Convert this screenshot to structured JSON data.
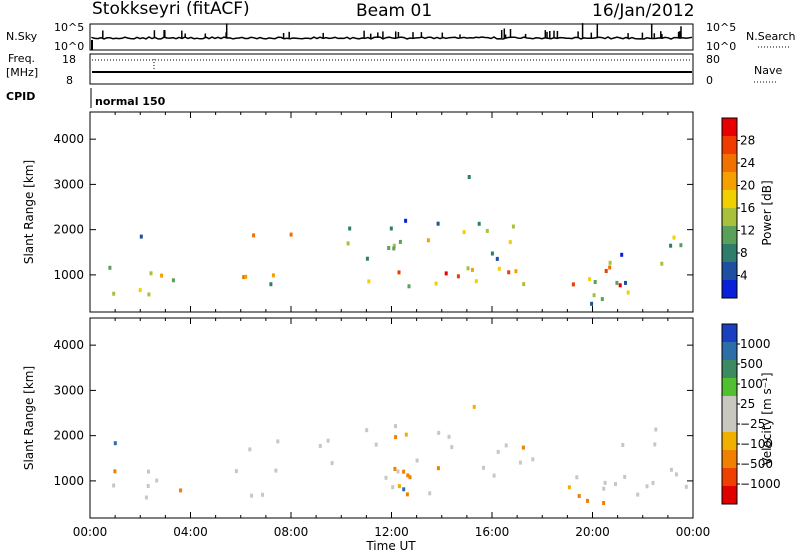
{
  "header": {
    "station": "Stokkseyri (fitACF)",
    "beam": "Beam 01",
    "date": "16/Jan/2012"
  },
  "strip": {
    "nsky_label": "N.Sky",
    "nsky_ticks": [
      "10^5",
      "10^0"
    ],
    "nsearch_label": "N.Search",
    "nsearch_ticks": [
      "10^5",
      "10^0"
    ],
    "freq_label_1": "Freq.",
    "freq_label_2": "[MHz]",
    "freq_ticks": [
      "18",
      "8"
    ],
    "nave_label": "Nave",
    "nave_ticks": [
      "80",
      "0"
    ],
    "cpid_label": "CPID",
    "cpid_value": "normal 150"
  },
  "chart_data": [
    {
      "type": "heatmap",
      "name": "power",
      "ylabel": "Slant Range [km]",
      "xlabel": "Time UT",
      "x_ticks": [
        "00:00",
        "04:00",
        "08:00",
        "12:00",
        "16:00",
        "20:00",
        "00:00"
      ],
      "y_ticks": [
        1000,
        2000,
        3000,
        4000
      ],
      "ylim": [
        180,
        4600
      ],
      "xlim_hours": [
        0,
        24
      ],
      "colorbar_label": "Power [dB]",
      "colorbar_ticks": [
        "4",
        "8",
        "12",
        "16",
        "20",
        "24",
        "28"
      ],
      "colorbar_colors": [
        "#0a1fd8",
        "#1e4fa0",
        "#2e7d6a",
        "#5aa05a",
        "#a8c03c",
        "#f0d000",
        "#f5a000",
        "#f07000",
        "#f03c00",
        "#e80000"
      ]
    },
    {
      "type": "heatmap",
      "name": "velocity",
      "ylabel": "Slant Range [km]",
      "xlabel": "Time UT",
      "x_ticks": [
        "00:00",
        "04:00",
        "08:00",
        "12:00",
        "16:00",
        "20:00",
        "00:00"
      ],
      "y_ticks": [
        1000,
        2000,
        3000,
        4000
      ],
      "ylim": [
        180,
        4600
      ],
      "xlim_hours": [
        0,
        24
      ],
      "colorbar_label": "Velocity [m s⁻¹]",
      "colorbar_ticks": [
        "1000",
        "500",
        "100",
        "25",
        "−25",
        "−100",
        "−500",
        "−1000"
      ],
      "colorbar_colors": [
        "#1a40c0",
        "#2c6ea8",
        "#3c8a62",
        "#50c030",
        "#c8c8c0",
        "#c8c8c0",
        "#f0b000",
        "#f08000",
        "#f04000",
        "#e00000"
      ]
    }
  ]
}
